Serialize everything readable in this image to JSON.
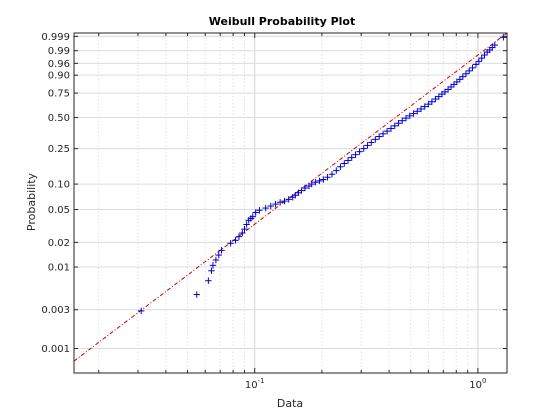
{
  "chart_data": {
    "type": "scatter",
    "title": "Weibull Probability Plot",
    "xlabel": "Data",
    "ylabel": "Probability",
    "x_scale": "log",
    "y_scale": "weibull",
    "xlim": [
      0.0155,
      1.35
    ],
    "ylim": [
      0.0005,
      0.9995
    ],
    "grid": true,
    "x_tick_labels": [
      {
        "value": 0.1,
        "base": "10",
        "exp": "-1"
      },
      {
        "value": 1,
        "base": "10",
        "exp": "0"
      }
    ],
    "y_tick_labels": [
      {
        "value": 0.001,
        "label": "0.001"
      },
      {
        "value": 0.003,
        "label": "0.003"
      },
      {
        "value": 0.01,
        "label": "0.01"
      },
      {
        "value": 0.02,
        "label": "0.02"
      },
      {
        "value": 0.05,
        "label": "0.05"
      },
      {
        "value": 0.1,
        "label": "0.10"
      },
      {
        "value": 0.25,
        "label": "0.25"
      },
      {
        "value": 0.5,
        "label": "0.50"
      },
      {
        "value": 0.75,
        "label": "0.75"
      },
      {
        "value": 0.9,
        "label": "0.90"
      },
      {
        "value": 0.96,
        "label": "0.96"
      },
      {
        "value": 0.99,
        "label": "0.99"
      },
      {
        "value": 0.999,
        "label": "0.999"
      }
    ],
    "fit_line": {
      "from": [
        0.0155,
        0.0007
      ],
      "to": [
        1.35,
        0.9995
      ],
      "color": "#cc0000"
    },
    "series": [
      {
        "marker": "+",
        "color": "#0000cc",
        "points": [
          [
            0.031,
            0.0029
          ],
          [
            0.055,
            0.0046
          ],
          [
            0.062,
            0.0068
          ],
          [
            0.064,
            0.009
          ],
          [
            0.065,
            0.0105
          ],
          [
            0.067,
            0.0122
          ],
          [
            0.069,
            0.014
          ],
          [
            0.071,
            0.016
          ],
          [
            0.078,
            0.0195
          ],
          [
            0.082,
            0.0212
          ],
          [
            0.085,
            0.0235
          ],
          [
            0.088,
            0.026
          ],
          [
            0.09,
            0.029
          ],
          [
            0.092,
            0.033
          ],
          [
            0.094,
            0.037
          ],
          [
            0.096,
            0.039
          ],
          [
            0.098,
            0.041
          ],
          [
            0.101,
            0.046
          ],
          [
            0.105,
            0.049
          ],
          [
            0.112,
            0.052
          ],
          [
            0.118,
            0.055
          ],
          [
            0.124,
            0.058
          ],
          [
            0.13,
            0.061
          ],
          [
            0.136,
            0.063
          ],
          [
            0.142,
            0.066
          ],
          [
            0.148,
            0.07
          ],
          [
            0.152,
            0.074
          ],
          [
            0.157,
            0.079
          ],
          [
            0.162,
            0.084
          ],
          [
            0.168,
            0.09
          ],
          [
            0.175,
            0.095
          ],
          [
            0.18,
            0.1
          ],
          [
            0.187,
            0.105
          ],
          [
            0.195,
            0.109
          ],
          [
            0.203,
            0.113
          ],
          [
            0.212,
            0.12
          ],
          [
            0.222,
            0.13
          ],
          [
            0.232,
            0.143
          ],
          [
            0.242,
            0.158
          ],
          [
            0.252,
            0.172
          ],
          [
            0.262,
            0.186
          ],
          [
            0.272,
            0.2
          ],
          [
            0.283,
            0.215
          ],
          [
            0.295,
            0.232
          ],
          [
            0.308,
            0.25
          ],
          [
            0.32,
            0.27
          ],
          [
            0.333,
            0.29
          ],
          [
            0.347,
            0.312
          ],
          [
            0.361,
            0.333
          ],
          [
            0.376,
            0.354
          ],
          [
            0.392,
            0.376
          ],
          [
            0.408,
            0.398
          ],
          [
            0.424,
            0.422
          ],
          [
            0.441,
            0.446
          ],
          [
            0.458,
            0.47
          ],
          [
            0.476,
            0.494
          ],
          [
            0.495,
            0.517
          ],
          [
            0.515,
            0.54
          ],
          [
            0.535,
            0.563
          ],
          [
            0.556,
            0.587
          ],
          [
            0.578,
            0.612
          ],
          [
            0.6,
            0.637
          ],
          [
            0.622,
            0.662
          ],
          [
            0.645,
            0.69
          ],
          [
            0.668,
            0.715
          ],
          [
            0.69,
            0.74
          ],
          [
            0.712,
            0.762
          ],
          [
            0.735,
            0.785
          ],
          [
            0.758,
            0.808
          ],
          [
            0.781,
            0.83
          ],
          [
            0.805,
            0.851
          ],
          [
            0.83,
            0.871
          ],
          [
            0.856,
            0.89
          ],
          [
            0.884,
            0.909
          ],
          [
            0.914,
            0.926
          ],
          [
            0.946,
            0.941
          ],
          [
            0.98,
            0.956
          ],
          [
            1.01,
            0.967
          ],
          [
            1.04,
            0.976
          ],
          [
            1.07,
            0.983
          ],
          [
            1.1,
            0.988
          ],
          [
            1.13,
            0.991
          ],
          [
            1.16,
            0.9935
          ],
          [
            1.19,
            0.9955
          ],
          [
            1.3,
            0.9988
          ]
        ]
      }
    ]
  }
}
